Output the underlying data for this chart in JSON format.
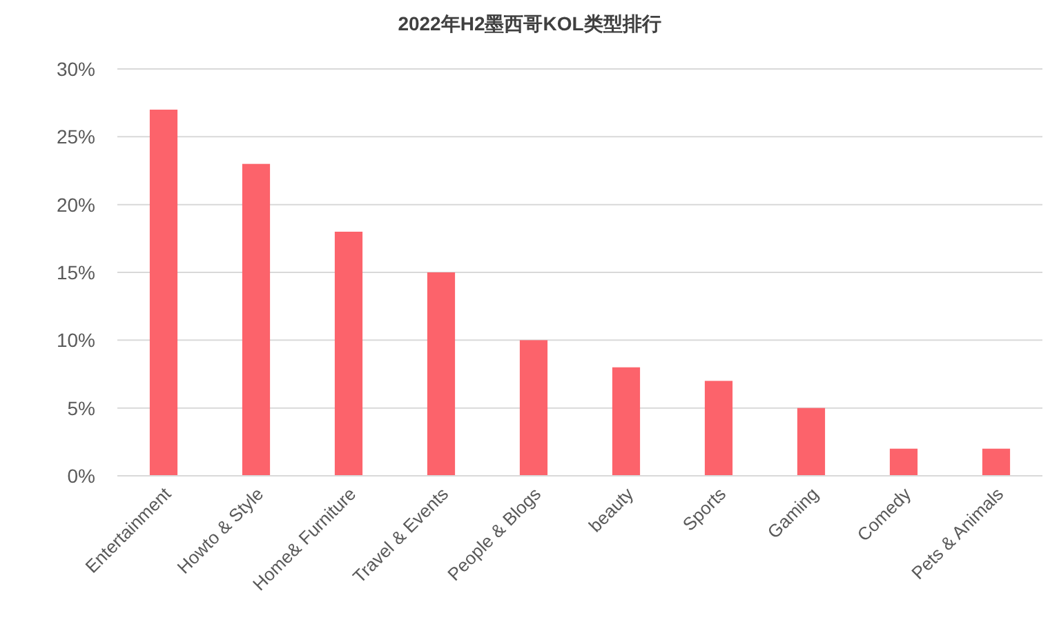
{
  "chart_data": {
    "type": "bar",
    "title": "2022年H2墨西哥KOL类型排行",
    "categories": [
      "Entertainment",
      "Howto & Style",
      "Home& Furniture",
      "Travel & Events",
      "People & Blogs",
      "beauty",
      "Sports",
      "Gaming",
      "Comedy",
      "Pets & Animals"
    ],
    "values": [
      27,
      23,
      18,
      15,
      10,
      8,
      7,
      5,
      2,
      2
    ],
    "color": "#fc636b",
    "ylim": [
      0,
      30
    ],
    "yticks": [
      {
        "value": 0,
        "label": "0%"
      },
      {
        "value": 5,
        "label": "5%"
      },
      {
        "value": 10,
        "label": "10%"
      },
      {
        "value": 15,
        "label": "15%"
      },
      {
        "value": 20,
        "label": "20%"
      },
      {
        "value": 25,
        "label": "25%"
      },
      {
        "value": 30,
        "label": "30%"
      }
    ],
    "grid": "y"
  }
}
